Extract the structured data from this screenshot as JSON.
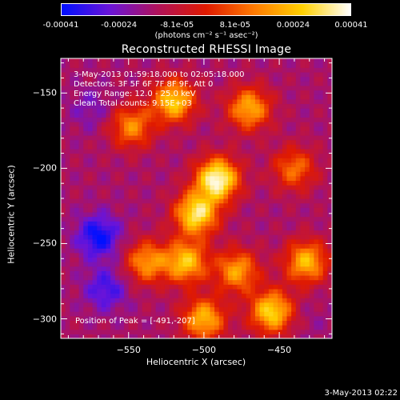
{
  "colorbar": {
    "ticks": [
      "-0.00041",
      "-0.00024",
      "-8.1e-05",
      "8.1e-05",
      "0.00024",
      "0.00041"
    ],
    "units": "(photons cm⁻² s⁻¹ asec⁻²)",
    "colormap": [
      "#0010ff",
      "#6a14d8",
      "#b0125a",
      "#e01a00",
      "#ff7a00",
      "#ffd000",
      "#ffffff"
    ]
  },
  "title": "Reconstructed RHESSI Image",
  "info": {
    "time": "3-May-2013 01:59:18.000 to 02:05:18.000",
    "detectors": "Detectors: 3F 5F 6F 7F 8F 9F, Att 0",
    "energy": "Energy Range: 12.0 - 25.0 keV",
    "clean": "Clean     Total counts: 9.15E+03"
  },
  "peak": "Position of Peak = [-491,-207]",
  "footer_date": "3-May-2013 02:22",
  "chart_data": {
    "type": "heatmap",
    "title": "Reconstructed RHESSI Image",
    "xlabel": "Heliocentric X (arcsec)",
    "ylabel": "Heliocentric Y (arcsec)",
    "xlim": [
      -595,
      -415
    ],
    "ylim": [
      -313,
      -127
    ],
    "x_ticks": [
      -550,
      -500,
      -450
    ],
    "y_ticks": [
      -150,
      -200,
      -250,
      -300
    ],
    "x_tick_labels": [
      "−550",
      "−500",
      "−450"
    ],
    "y_tick_labels": [
      "−150",
      "−200",
      "−250",
      "−300"
    ],
    "value_range": [
      -0.00041,
      0.00041
    ],
    "peak_position": [
      -491,
      -207
    ],
    "bright_sources": [
      {
        "x": -491,
        "y": -207,
        "value": 0.00041
      },
      {
        "x": -505,
        "y": -230,
        "value": 0.00034
      },
      {
        "x": -520,
        "y": -155,
        "value": 0.00028
      },
      {
        "x": -470,
        "y": -160,
        "value": 0.00022
      },
      {
        "x": -455,
        "y": -295,
        "value": 0.0003
      },
      {
        "x": -432,
        "y": -262,
        "value": 0.00024
      },
      {
        "x": -512,
        "y": -262,
        "value": 0.00026
      },
      {
        "x": -538,
        "y": -262,
        "value": 0.00018
      },
      {
        "x": -478,
        "y": -268,
        "value": 0.0002
      },
      {
        "x": -500,
        "y": -300,
        "value": 0.00024
      },
      {
        "x": -548,
        "y": -172,
        "value": 0.00016
      },
      {
        "x": -440,
        "y": -200,
        "value": 0.00012
      }
    ],
    "dark_regions": [
      {
        "x": -570,
        "y": -245,
        "value": -0.00041
      },
      {
        "x": -565,
        "y": -280,
        "value": -0.00033
      },
      {
        "x": -575,
        "y": -160,
        "value": -0.00024
      },
      {
        "x": -430,
        "y": -300,
        "value": -0.00018
      }
    ]
  }
}
